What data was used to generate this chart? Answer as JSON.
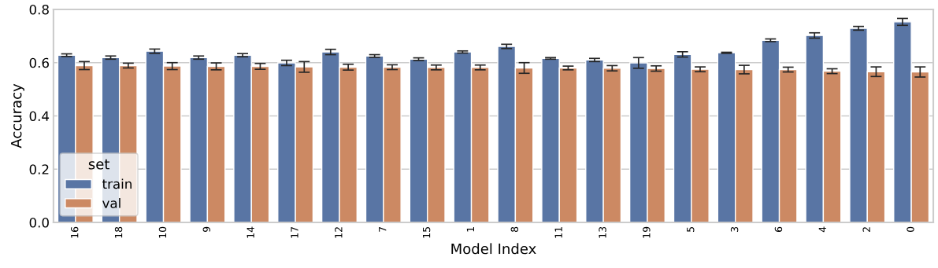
{
  "chart_data": {
    "type": "bar",
    "xlabel": "Model Index",
    "ylabel": "Accuracy",
    "legend_title": "set",
    "categories": [
      "16",
      "18",
      "10",
      "9",
      "14",
      "17",
      "12",
      "7",
      "15",
      "1",
      "8",
      "11",
      "13",
      "19",
      "5",
      "3",
      "6",
      "4",
      "2",
      "0"
    ],
    "series": [
      {
        "name": "train",
        "color": "#5975a4",
        "values": [
          0.628,
          0.619,
          0.643,
          0.619,
          0.628,
          0.599,
          0.64,
          0.625,
          0.613,
          0.64,
          0.661,
          0.616,
          0.61,
          0.599,
          0.631,
          0.637,
          0.684,
          0.702,
          0.729,
          0.753
        ],
        "errors": [
          0.005,
          0.006,
          0.008,
          0.006,
          0.006,
          0.01,
          0.01,
          0.005,
          0.005,
          0.004,
          0.008,
          0.003,
          0.006,
          0.02,
          0.01,
          0.002,
          0.005,
          0.01,
          0.007,
          0.013
        ]
      },
      {
        "name": "val",
        "color": "#cc8963",
        "values": [
          0.589,
          0.589,
          0.587,
          0.586,
          0.586,
          0.584,
          0.583,
          0.583,
          0.582,
          0.582,
          0.58,
          0.58,
          0.579,
          0.578,
          0.575,
          0.574,
          0.574,
          0.568,
          0.566,
          0.565
        ],
        "errors": [
          0.015,
          0.009,
          0.013,
          0.013,
          0.011,
          0.02,
          0.011,
          0.009,
          0.009,
          0.009,
          0.02,
          0.007,
          0.01,
          0.01,
          0.009,
          0.016,
          0.009,
          0.009,
          0.018,
          0.019
        ]
      }
    ],
    "ylim": [
      0,
      0.8
    ],
    "yticks": [
      {
        "value": 0,
        "label": "0.0"
      },
      {
        "value": 0.2,
        "label": "0.2"
      },
      {
        "value": 0.4,
        "label": "0.4"
      },
      {
        "value": 0.6,
        "label": "0.6"
      },
      {
        "value": 0.8,
        "label": "0.8"
      }
    ],
    "grid": "y",
    "legend": "bottom left"
  }
}
